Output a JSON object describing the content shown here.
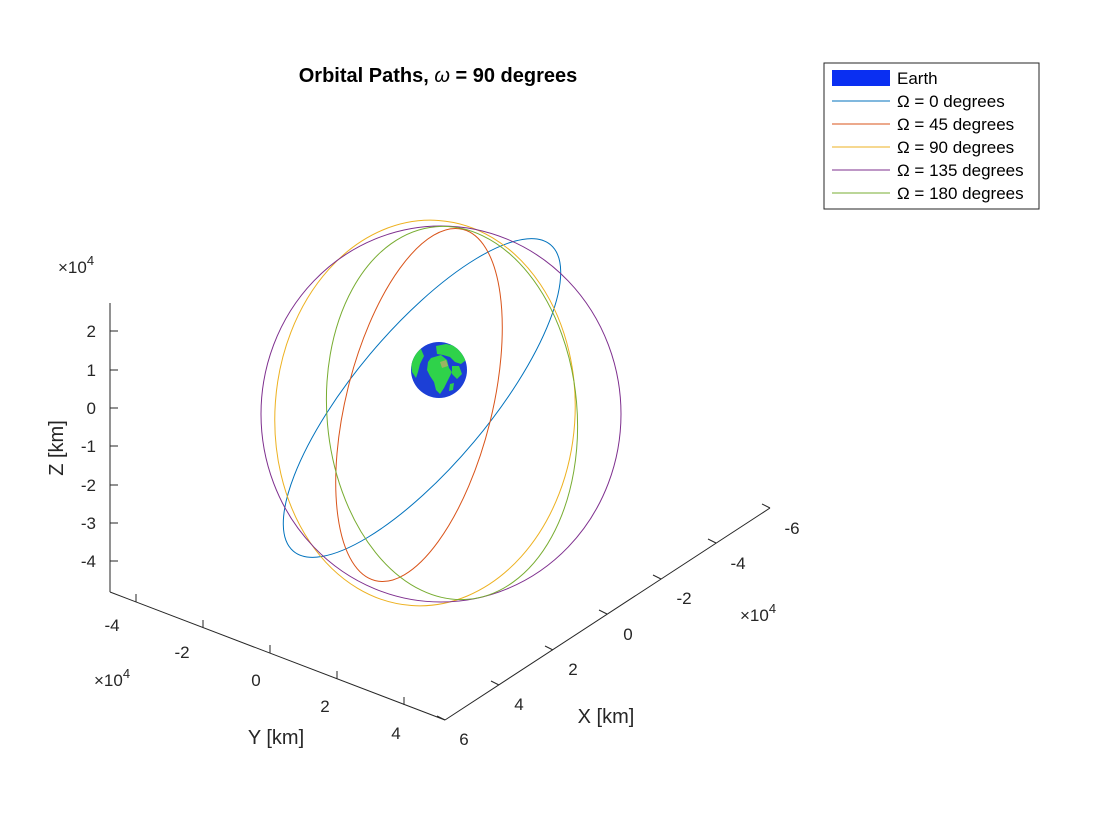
{
  "chart_data": {
    "type": "line",
    "projection": "3d",
    "title_prefix": "Orbital Paths, ",
    "title_symbol": "ω",
    "title_suffix": " = 90 degrees",
    "xlabel": "X [km]",
    "ylabel": "Y [km]",
    "zlabel": "Z [km]",
    "x_multiplier": "×10",
    "x_multiplier_exp": "4",
    "y_multiplier": "×10",
    "y_multiplier_exp": "4",
    "z_multiplier": "×10",
    "z_multiplier_exp": "4",
    "x_ticks": [
      "-6",
      "-4",
      "-2",
      "0",
      "2",
      "4",
      "6"
    ],
    "y_ticks": [
      "-4",
      "-2",
      "0",
      "2",
      "4"
    ],
    "z_ticks": [
      "2",
      "1",
      "0",
      "-1",
      "-2",
      "-3",
      "-4"
    ],
    "legend_position": "top-right",
    "legend": [
      {
        "label": "Earth",
        "color": "#0a2ff2",
        "kind": "patch"
      },
      {
        "label": "Ω = 0 degrees",
        "color": "#0072BD",
        "kind": "line"
      },
      {
        "label": "Ω = 45 degrees",
        "color": "#D95319",
        "kind": "line"
      },
      {
        "label": "Ω = 90 degrees",
        "color": "#EDB120",
        "kind": "line"
      },
      {
        "label": "Ω = 135 degrees",
        "color": "#7E2F8E",
        "kind": "line"
      },
      {
        "label": "Ω = 180 degrees",
        "color": "#77AC30",
        "kind": "line"
      }
    ],
    "series": [
      {
        "name": "Ω = 0 degrees",
        "raan_deg": 0,
        "color": "#0072BD"
      },
      {
        "name": "Ω = 45 degrees",
        "raan_deg": 45,
        "color": "#D95319"
      },
      {
        "name": "Ω = 90 degrees",
        "raan_deg": 90,
        "color": "#EDB120"
      },
      {
        "name": "Ω = 135 degrees",
        "raan_deg": 135,
        "color": "#7E2F8E"
      },
      {
        "name": "Ω = 180 degrees",
        "raan_deg": 180,
        "color": "#77AC30"
      }
    ],
    "earth": {
      "label": "Earth",
      "ocean_color": "#1c3fd6",
      "land_color": "#2fd24a"
    },
    "grid": false
  }
}
